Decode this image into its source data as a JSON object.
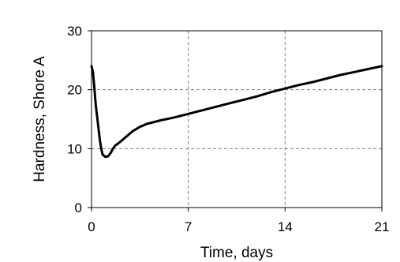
{
  "chart_data": {
    "type": "line",
    "title": "",
    "xlabel": "Time, days",
    "ylabel": "Hardness, Shore A",
    "xlim": [
      0,
      21
    ],
    "ylim": [
      0,
      30
    ],
    "xticks": [
      0,
      7,
      14,
      21
    ],
    "yticks": [
      0,
      10,
      20,
      30
    ],
    "xtick_labels": [
      "0",
      "7",
      "14",
      "21"
    ],
    "ytick_labels": [
      "0",
      "10",
      "20",
      "30"
    ],
    "grid": true,
    "legend": "none",
    "series": [
      {
        "color": "#000000",
        "x": [
          0,
          0.1,
          0.2,
          0.3,
          0.5,
          0.6,
          0.7,
          0.8,
          1.0,
          1.2,
          1.4,
          1.5,
          1.7,
          2.0,
          2.5,
          3.0,
          3.5,
          4.0,
          5.0,
          6.0,
          7.0,
          8.0,
          9.0,
          10.0,
          11.0,
          12.0,
          13.0,
          14.0,
          15.0,
          16.0,
          17.0,
          18.0,
          19.0,
          20.0,
          21.0
        ],
        "y": [
          24.0,
          23.0,
          20.5,
          17.5,
          13.5,
          11.5,
          10.0,
          9.0,
          8.6,
          8.7,
          9.3,
          9.8,
          10.5,
          11.0,
          12.0,
          13.0,
          13.7,
          14.2,
          14.8,
          15.3,
          15.9,
          16.5,
          17.1,
          17.7,
          18.3,
          18.9,
          19.6,
          20.2,
          20.8,
          21.3,
          21.9,
          22.5,
          23.0,
          23.5,
          24.0
        ]
      }
    ]
  }
}
